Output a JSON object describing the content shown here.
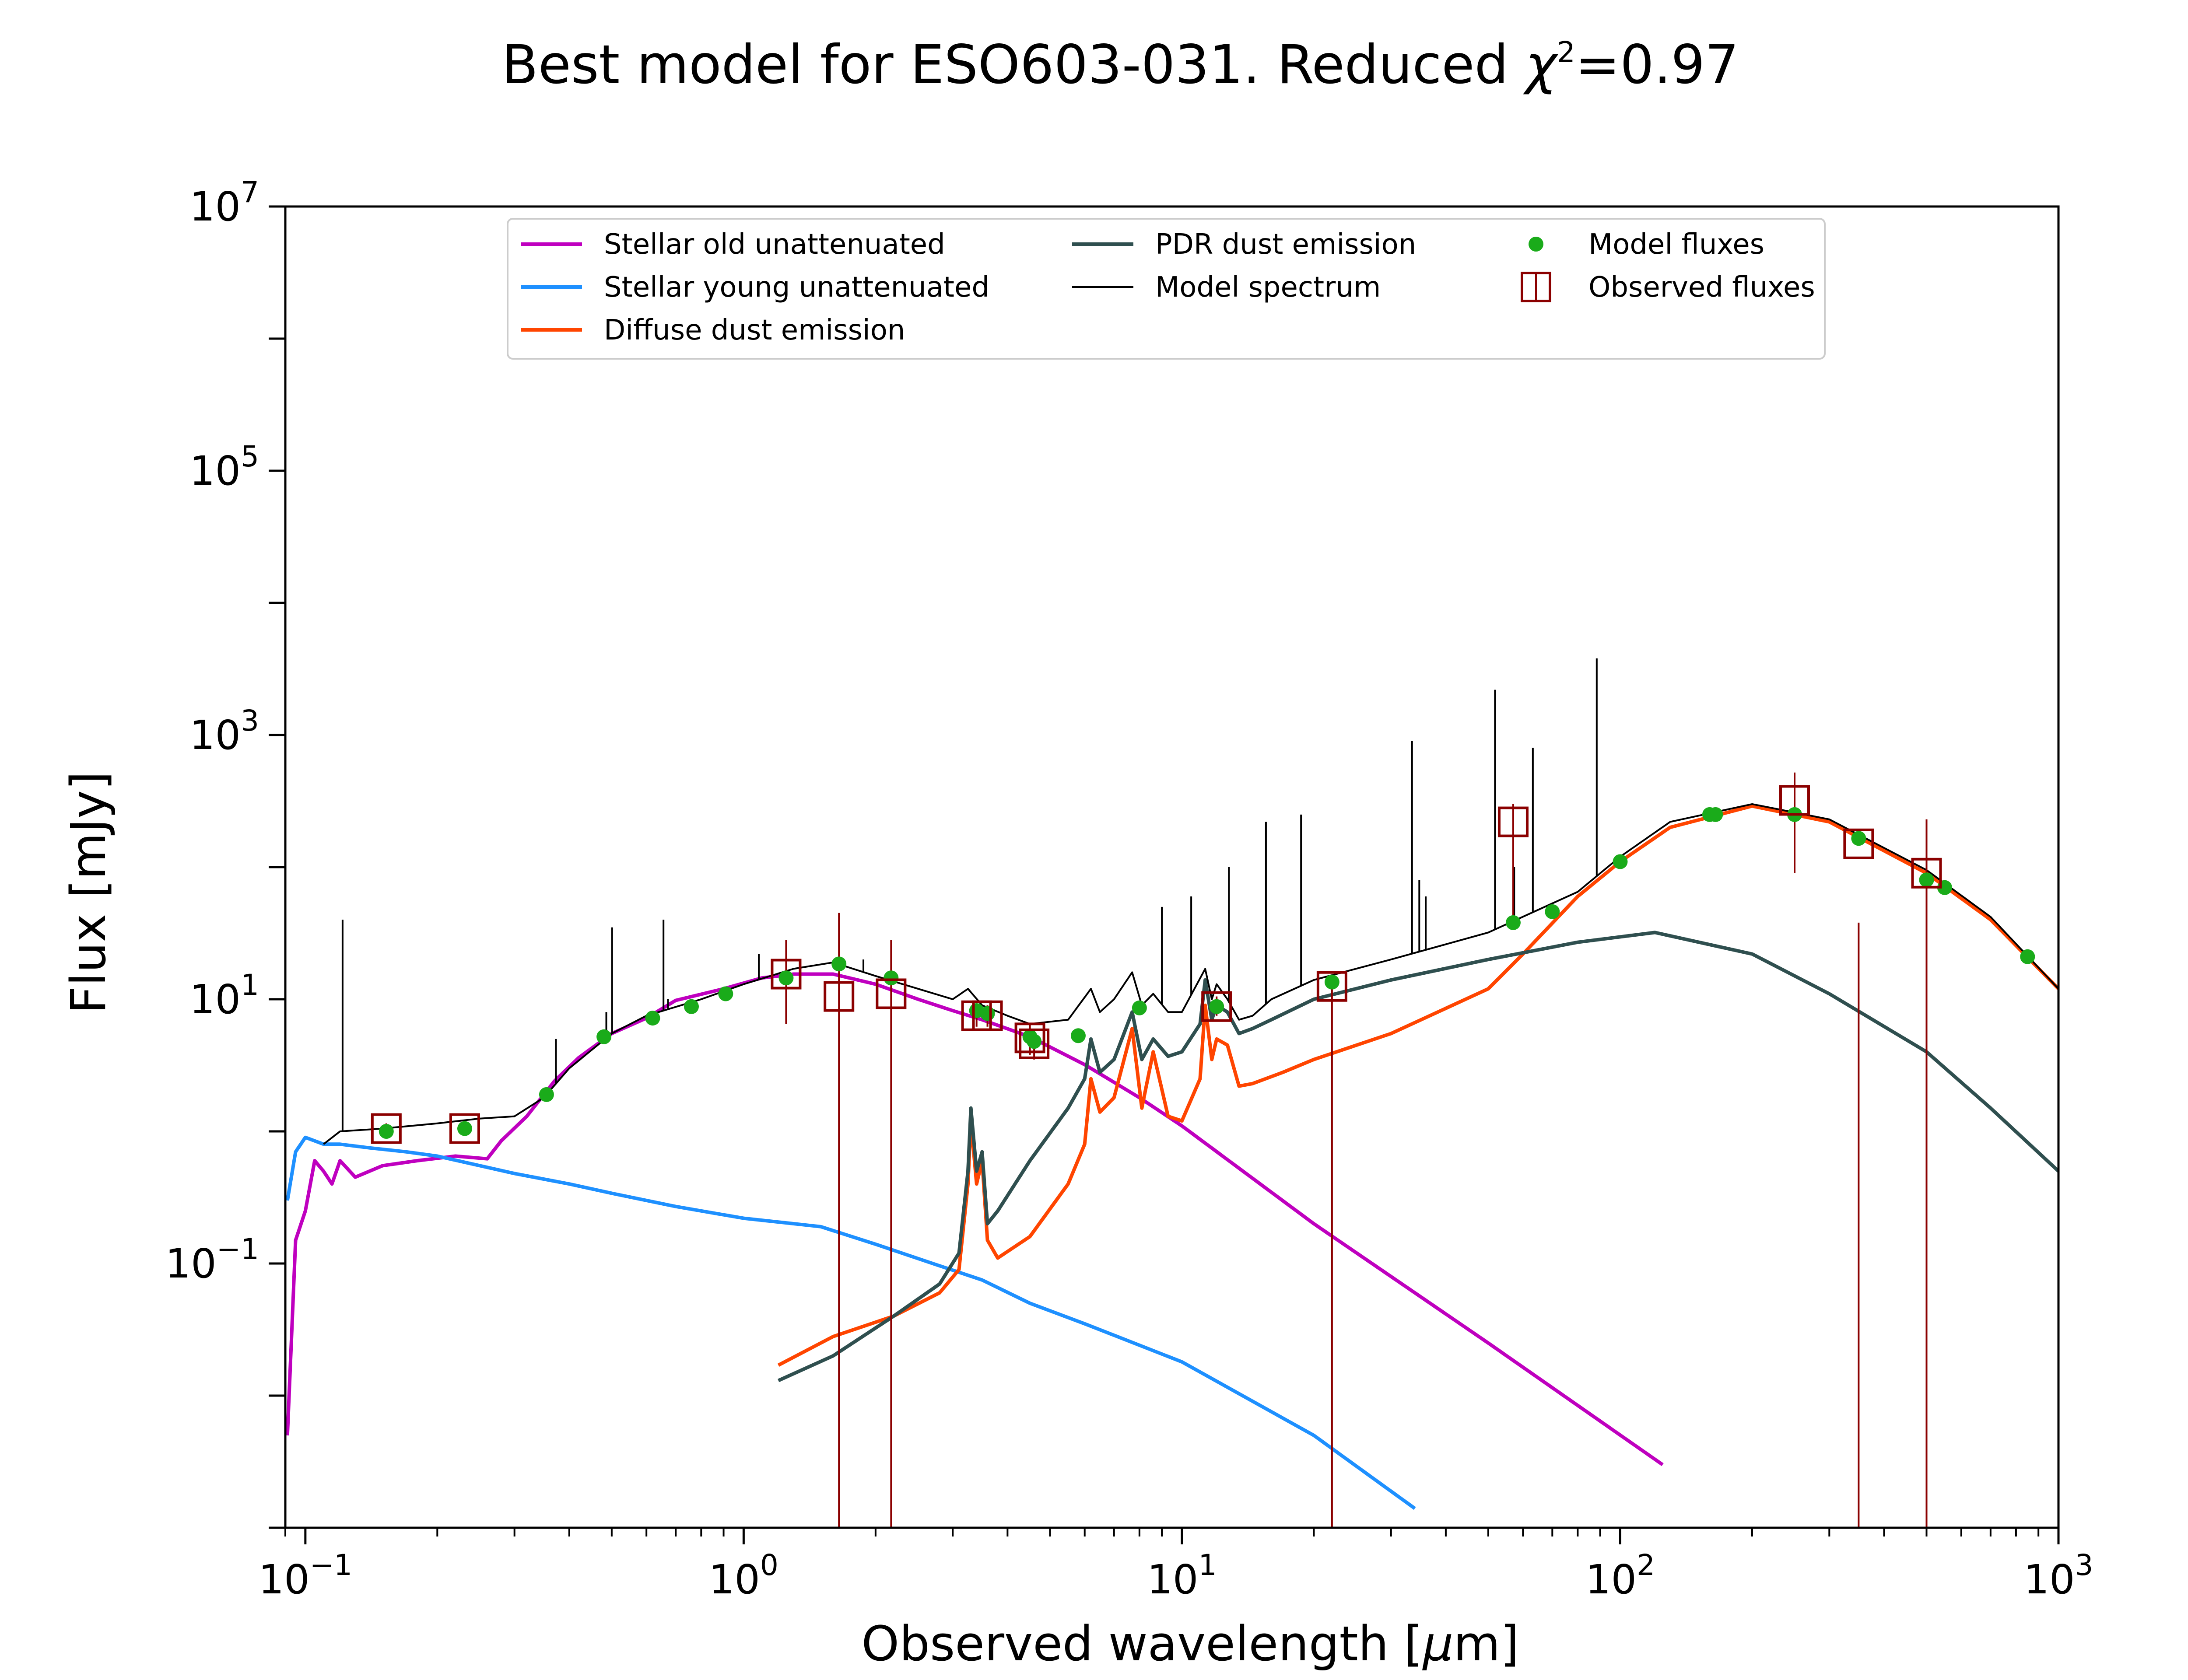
{
  "chart_data": {
    "type": "line",
    "title": "Best model for ESO603-031. Reduced χ²=0.97",
    "title_parts": {
      "prefix": "Best model for ESO603-031. Reduced ",
      "chi": "χ",
      "exponent": "2",
      "suffix": "=0.97"
    },
    "xlabel": "Observed wavelength [μm]",
    "xlabel_parts": {
      "prefix": "Observed wavelength [",
      "mu": "μ",
      "suffix": "m]"
    },
    "ylabel": "Flux [mJy]",
    "x_scale": "log",
    "y_scale": "log",
    "xlim": [
      0.09,
      1000
    ],
    "ylim": [
      0.001,
      10000000
    ],
    "x_ticks": [
      {
        "value": 0.1,
        "base": "10",
        "exp": "−1"
      },
      {
        "value": 1,
        "base": "10",
        "exp": "0"
      },
      {
        "value": 10,
        "base": "10",
        "exp": "1"
      },
      {
        "value": 100,
        "base": "10",
        "exp": "2"
      },
      {
        "value": 1000,
        "base": "10",
        "exp": "3"
      }
    ],
    "y_ticks": [
      {
        "value": 0.1,
        "base": "10",
        "exp": "−1"
      },
      {
        "value": 10,
        "base": "10",
        "exp": "1"
      },
      {
        "value": 1000,
        "base": "10",
        "exp": "3"
      },
      {
        "value": 100000,
        "base": "10",
        "exp": "5"
      },
      {
        "value": 10000000,
        "base": "10",
        "exp": "7"
      }
    ],
    "grid": false,
    "legend_position": "top-center",
    "legend": [
      {
        "label": "Stellar old unattenuated",
        "kind": "line",
        "color": "#BF00BF"
      },
      {
        "label": "Stellar young unattenuated",
        "kind": "line",
        "color": "#1E90FF"
      },
      {
        "label": "Diffuse dust emission",
        "kind": "line",
        "color": "#FF4500"
      },
      {
        "label": "PDR dust emission",
        "kind": "line",
        "color": "#2F4F4F"
      },
      {
        "label": "Model spectrum",
        "kind": "thinline",
        "color": "#000000"
      },
      {
        "label": "Model fluxes",
        "kind": "dot",
        "color": "#1AAB1A"
      },
      {
        "label": "Observed fluxes",
        "kind": "box",
        "color": "#8B0000"
      }
    ],
    "series": [
      {
        "name": "Stellar old unattenuated",
        "color": "#BF00BF",
        "x": [
          0.091,
          0.095,
          0.1,
          0.105,
          0.11,
          0.115,
          0.12,
          0.13,
          0.15,
          0.18,
          0.22,
          0.26,
          0.28,
          0.32,
          0.37,
          0.42,
          0.5,
          0.6,
          0.7,
          0.9,
          1.1,
          1.3,
          1.6,
          2.0,
          2.5,
          3.0,
          3.5,
          4.5,
          6,
          8,
          10,
          20,
          50,
          125
        ],
        "y": [
          0.005,
          0.15,
          0.25,
          0.6,
          0.5,
          0.4,
          0.6,
          0.45,
          0.55,
          0.6,
          0.65,
          0.62,
          0.85,
          1.3,
          2.4,
          3.6,
          5.5,
          7.2,
          9.8,
          12,
          14.5,
          15.5,
          15.5,
          13,
          10,
          8.2,
          7,
          5.2,
          3.2,
          1.8,
          1.1,
          0.2,
          0.025,
          0.003
        ]
      },
      {
        "name": "Stellar young unattenuated",
        "color": "#1E90FF",
        "x": [
          0.091,
          0.095,
          0.1,
          0.11,
          0.12,
          0.14,
          0.17,
          0.2,
          0.25,
          0.3,
          0.4,
          0.5,
          0.7,
          1.0,
          1.5,
          2.0,
          2.7,
          3.5,
          4.5,
          6,
          10,
          20,
          34
        ],
        "y": [
          0.3,
          0.7,
          0.9,
          0.8,
          0.8,
          0.75,
          0.7,
          0.65,
          0.55,
          0.48,
          0.4,
          0.34,
          0.27,
          0.22,
          0.19,
          0.14,
          0.1,
          0.075,
          0.05,
          0.035,
          0.018,
          0.005,
          0.0014
        ]
      },
      {
        "name": "Diffuse dust emission",
        "color": "#FF4500",
        "x": [
          1.2,
          1.6,
          2.2,
          2.8,
          3.1,
          3.25,
          3.3,
          3.4,
          3.5,
          3.6,
          3.8,
          4.5,
          5.5,
          6.0,
          6.2,
          6.5,
          7.0,
          7.7,
          8.1,
          8.6,
          9.3,
          10.0,
          11.0,
          11.3,
          11.7,
          12.0,
          12.7,
          13.5,
          14.5,
          17,
          20,
          30,
          50,
          60,
          80,
          100,
          130,
          200,
          300,
          500,
          700,
          1000
        ],
        "y": [
          0.017,
          0.028,
          0.04,
          0.06,
          0.09,
          0.4,
          1.2,
          0.4,
          0.6,
          0.15,
          0.11,
          0.16,
          0.4,
          0.8,
          2.5,
          1.4,
          1.8,
          6,
          1.5,
          4,
          1.3,
          1.2,
          2.5,
          9,
          3.5,
          5,
          4.5,
          2.2,
          2.3,
          2.8,
          3.5,
          5.5,
          12,
          22,
          60,
          110,
          200,
          290,
          220,
          90,
          40,
          12
        ]
      },
      {
        "name": "PDR dust emission",
        "color": "#2F4F4F",
        "x": [
          1.2,
          1.6,
          2.2,
          2.8,
          3.1,
          3.25,
          3.3,
          3.4,
          3.5,
          3.6,
          3.8,
          4.5,
          5.5,
          6.0,
          6.2,
          6.5,
          7.0,
          7.7,
          8.1,
          8.6,
          9.3,
          10.0,
          11.0,
          11.3,
          11.7,
          12.0,
          12.7,
          13.5,
          14.5,
          16,
          20,
          30,
          50,
          80,
          120,
          200,
          300,
          500,
          700,
          1000
        ],
        "y": [
          0.013,
          0.02,
          0.04,
          0.07,
          0.12,
          0.5,
          1.5,
          0.5,
          0.7,
          0.2,
          0.25,
          0.6,
          1.5,
          2.5,
          5,
          2.8,
          3.5,
          8,
          3.5,
          5,
          3.7,
          4,
          6.5,
          14,
          7,
          9,
          8,
          5.5,
          6,
          7,
          10,
          14,
          20,
          27,
          32,
          22,
          11,
          4,
          1.5,
          0.5
        ]
      },
      {
        "name": "Model spectrum",
        "color": "#000000",
        "x": [
          0.11,
          0.12,
          0.15,
          0.2,
          0.25,
          0.3,
          0.35,
          0.4,
          0.5,
          0.6,
          0.8,
          1.0,
          1.3,
          1.6,
          2.0,
          2.5,
          3.0,
          3.25,
          3.5,
          4.0,
          4.5,
          5.5,
          6.2,
          6.5,
          7.0,
          7.7,
          8.1,
          8.6,
          9.3,
          10.0,
          11.3,
          11.7,
          12.0,
          12.7,
          13.5,
          14.5,
          16,
          20,
          30,
          50,
          80,
          100,
          130,
          200,
          300,
          500,
          700,
          1000
        ],
        "y": [
          0.8,
          1.0,
          1.05,
          1.15,
          1.25,
          1.3,
          1.8,
          3.0,
          5.5,
          7.5,
          10,
          13,
          17,
          19,
          15,
          12,
          10,
          12,
          9,
          7.5,
          6.5,
          7,
          12,
          8,
          10,
          16,
          9,
          11,
          8,
          8,
          17,
          10,
          13,
          10,
          7,
          7.5,
          10,
          14,
          20,
          32,
          65,
          120,
          220,
          300,
          230,
          95,
          42,
          12
        ]
      }
    ],
    "emission_lines": [
      {
        "x": 0.1216,
        "y": 40
      },
      {
        "x": 0.373,
        "y": 5
      },
      {
        "x": 0.486,
        "y": 8
      },
      {
        "x": 0.501,
        "y": 35
      },
      {
        "x": 0.6563,
        "y": 40
      },
      {
        "x": 0.672,
        "y": 10
      },
      {
        "x": 1.083,
        "y": 22
      },
      {
        "x": 1.876,
        "y": 20
      },
      {
        "x": 9.0,
        "y": 50
      },
      {
        "x": 10.5,
        "y": 60
      },
      {
        "x": 12.8,
        "y": 100
      },
      {
        "x": 15.55,
        "y": 220
      },
      {
        "x": 18.7,
        "y": 250
      },
      {
        "x": 33.5,
        "y": 900
      },
      {
        "x": 34.8,
        "y": 80
      },
      {
        "x": 36.0,
        "y": 60
      },
      {
        "x": 51.8,
        "y": 2200
      },
      {
        "x": 57.3,
        "y": 100
      },
      {
        "x": 63.2,
        "y": 800
      },
      {
        "x": 88.4,
        "y": 3800
      }
    ],
    "model_fluxes": {
      "x": [
        0.153,
        0.231,
        0.355,
        0.48,
        0.62,
        0.76,
        0.91,
        1.25,
        1.65,
        2.17,
        3.4,
        3.6,
        4.5,
        4.6,
        5.8,
        8.0,
        12.0,
        22.0,
        57,
        70,
        100,
        160,
        165,
        250,
        350,
        500,
        550,
        850
      ],
      "y": [
        1.0,
        1.05,
        1.9,
        5.2,
        7.2,
        8.8,
        11,
        14.5,
        18.5,
        14.5,
        8.2,
        7.8,
        5.2,
        4.8,
        5.3,
        8.6,
        8.8,
        13.5,
        38,
        46,
        110,
        250,
        250,
        250,
        165,
        80,
        70,
        21
      ]
    },
    "observed_fluxes": {
      "x": [
        0.153,
        0.231,
        1.25,
        1.65,
        2.17,
        3.4,
        3.6,
        4.5,
        4.6,
        12.0,
        22.0,
        57,
        250,
        350,
        500
      ],
      "y": [
        1.05,
        1.05,
        15.5,
        10.5,
        11,
        7.5,
        7.5,
        5.1,
        4.6,
        8.8,
        12.5,
        220,
        320,
        150,
        90
      ],
      "err_low": [
        0.95,
        0.95,
        6.5,
        0.001,
        0.001,
        6.2,
        6.2,
        3.8,
        3.5,
        7.5,
        0.001,
        40,
        90,
        0.001,
        0.001
      ],
      "err_high": [
        1.15,
        1.15,
        28,
        45,
        28,
        9,
        9,
        6.5,
        6,
        10.5,
        14,
        300,
        520,
        38,
        230
      ]
    }
  }
}
